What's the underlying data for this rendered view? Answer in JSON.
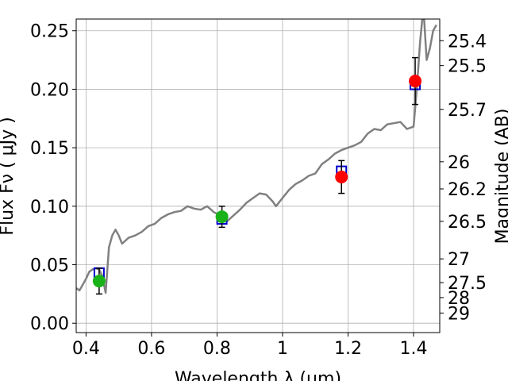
{
  "chart_data": {
    "type": "scatter",
    "xlabel": "Wavelength  λ (μm)",
    "ylabel": "Flux  Fν  ( μJy )",
    "y2label": "Magnitude (AB)",
    "xlim": [
      0.37,
      1.48
    ],
    "ylim": [
      -0.008,
      0.26
    ],
    "grid": true,
    "x_ticks": [
      {
        "value": 0.4,
        "label": "0.4"
      },
      {
        "value": 0.6,
        "label": "0.6"
      },
      {
        "value": 0.8,
        "label": "0.8"
      },
      {
        "value": 1.0,
        "label": "1"
      },
      {
        "value": 1.2,
        "label": "1.2"
      },
      {
        "value": 1.4,
        "label": "1.4"
      }
    ],
    "y_ticks": [
      {
        "value": 0.0,
        "label": "0.00"
      },
      {
        "value": 0.05,
        "label": "0.05"
      },
      {
        "value": 0.1,
        "label": "0.10"
      },
      {
        "value": 0.15,
        "label": "0.15"
      },
      {
        "value": 0.2,
        "label": "0.20"
      },
      {
        "value": 0.25,
        "label": "0.25"
      }
    ],
    "y2_ticks": [
      {
        "flux": 0.2415,
        "label": "25.4"
      },
      {
        "flux": 0.2202,
        "label": "25.5"
      },
      {
        "flux": 0.1828,
        "label": "25.7"
      },
      {
        "flux": 0.138,
        "label": "26"
      },
      {
        "flux": 0.1148,
        "label": "26.2"
      },
      {
        "flux": 0.0871,
        "label": "26.5"
      },
      {
        "flux": 0.055,
        "label": "27"
      },
      {
        "flux": 0.0347,
        "label": "27.5"
      },
      {
        "flux": 0.0219,
        "label": "28"
      },
      {
        "flux": 0.0087,
        "label": "29"
      }
    ],
    "series": [
      {
        "kind": "line",
        "color": "#808080",
        "points": [
          [
            0.37,
            0.03
          ],
          [
            0.38,
            0.028
          ],
          [
            0.39,
            0.033
          ],
          [
            0.4,
            0.038
          ],
          [
            0.41,
            0.044
          ],
          [
            0.42,
            0.046
          ],
          [
            0.43,
            0.047
          ],
          [
            0.44,
            0.046
          ],
          [
            0.45,
            0.04
          ],
          [
            0.46,
            0.026
          ],
          [
            0.47,
            0.065
          ],
          [
            0.48,
            0.075
          ],
          [
            0.49,
            0.08
          ],
          [
            0.5,
            0.075
          ],
          [
            0.51,
            0.068
          ],
          [
            0.53,
            0.073
          ],
          [
            0.55,
            0.075
          ],
          [
            0.57,
            0.078
          ],
          [
            0.59,
            0.083
          ],
          [
            0.61,
            0.085
          ],
          [
            0.63,
            0.09
          ],
          [
            0.65,
            0.093
          ],
          [
            0.67,
            0.095
          ],
          [
            0.69,
            0.096
          ],
          [
            0.71,
            0.1
          ],
          [
            0.73,
            0.098
          ],
          [
            0.75,
            0.097
          ],
          [
            0.77,
            0.1
          ],
          [
            0.79,
            0.095
          ],
          [
            0.81,
            0.092
          ],
          [
            0.83,
            0.087
          ],
          [
            0.85,
            0.092
          ],
          [
            0.87,
            0.097
          ],
          [
            0.89,
            0.103
          ],
          [
            0.91,
            0.107
          ],
          [
            0.93,
            0.111
          ],
          [
            0.95,
            0.11
          ],
          [
            0.97,
            0.104
          ],
          [
            0.98,
            0.1
          ],
          [
            1.0,
            0.107
          ],
          [
            1.02,
            0.114
          ],
          [
            1.04,
            0.119
          ],
          [
            1.06,
            0.122
          ],
          [
            1.08,
            0.126
          ],
          [
            1.1,
            0.128
          ],
          [
            1.12,
            0.136
          ],
          [
            1.14,
            0.14
          ],
          [
            1.16,
            0.145
          ],
          [
            1.18,
            0.148
          ],
          [
            1.2,
            0.15
          ],
          [
            1.22,
            0.152
          ],
          [
            1.24,
            0.155
          ],
          [
            1.26,
            0.162
          ],
          [
            1.28,
            0.166
          ],
          [
            1.3,
            0.165
          ],
          [
            1.32,
            0.17
          ],
          [
            1.34,
            0.171
          ],
          [
            1.36,
            0.172
          ],
          [
            1.38,
            0.166
          ],
          [
            1.4,
            0.168
          ],
          [
            1.41,
            0.2
          ],
          [
            1.42,
            0.24
          ],
          [
            1.43,
            0.27
          ],
          [
            1.44,
            0.225
          ],
          [
            1.45,
            0.235
          ],
          [
            1.46,
            0.25
          ],
          [
            1.47,
            0.255
          ]
        ]
      },
      {
        "kind": "scatter",
        "marker": "square",
        "color": "#0000cc",
        "points": [
          [
            0.44,
            0.043
          ],
          [
            0.815,
            0.089
          ],
          [
            1.18,
            0.13
          ],
          [
            1.405,
            0.204
          ]
        ]
      },
      {
        "kind": "scatter",
        "marker": "circle",
        "color": "#19b219",
        "points": [
          [
            0.44,
            0.036
          ],
          [
            0.815,
            0.091
          ]
        ],
        "error": [
          0.011,
          0.009
        ]
      },
      {
        "kind": "scatter",
        "marker": "circle",
        "color": "#ff0000",
        "points": [
          [
            1.18,
            0.125
          ],
          [
            1.405,
            0.207
          ]
        ],
        "error": [
          0.014,
          0.02
        ]
      }
    ]
  }
}
